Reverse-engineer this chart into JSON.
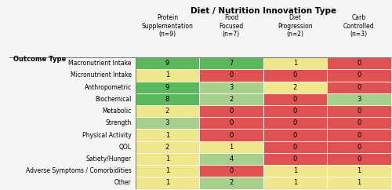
{
  "title": "Diet / Nutrition Innovation Type",
  "col_headers": [
    "Protein\nSupplementation\n(n=9)",
    "Food\nFocused\n(n=7)",
    "Diet\nProgression\n(n=2)",
    "Carb\nControlled\n(n=3)"
  ],
  "row_headers": [
    "Macronutrient Intake",
    "Micronutrient Intake",
    "Anthropometric",
    "Biochemical",
    "Metabolic",
    "Strength",
    "Physical Activity",
    "QOL",
    "Satiety/Hunger",
    "Adverse Symptoms / Comorbidities",
    "Other"
  ],
  "values": [
    [
      9,
      7,
      1,
      0
    ],
    [
      1,
      0,
      0,
      0
    ],
    [
      9,
      3,
      2,
      0
    ],
    [
      8,
      2,
      0,
      3
    ],
    [
      2,
      0,
      0,
      0
    ],
    [
      3,
      0,
      0,
      0
    ],
    [
      1,
      0,
      0,
      0
    ],
    [
      2,
      1,
      0,
      0
    ],
    [
      1,
      4,
      0,
      0
    ],
    [
      1,
      0,
      1,
      1
    ],
    [
      1,
      2,
      1,
      1
    ]
  ],
  "colors": [
    [
      "#5cb85c",
      "#5cb85c",
      "#f0e68c",
      "#e05252"
    ],
    [
      "#f0e68c",
      "#e05252",
      "#e05252",
      "#e05252"
    ],
    [
      "#5cb85c",
      "#a8d08d",
      "#f0e68c",
      "#e05252"
    ],
    [
      "#5cb85c",
      "#a8d08d",
      "#e05252",
      "#a8d08d"
    ],
    [
      "#f0e68c",
      "#e05252",
      "#e05252",
      "#e05252"
    ],
    [
      "#a8d08d",
      "#e05252",
      "#e05252",
      "#e05252"
    ],
    [
      "#f0e68c",
      "#e05252",
      "#e05252",
      "#e05252"
    ],
    [
      "#f0e68c",
      "#f0e68c",
      "#e05252",
      "#e05252"
    ],
    [
      "#f0e68c",
      "#a8d08d",
      "#e05252",
      "#e05252"
    ],
    [
      "#f0e68c",
      "#e05252",
      "#f0e68c",
      "#f0e68c"
    ],
    [
      "#f0e68c",
      "#a8d08d",
      "#f0e68c",
      "#f0e68c"
    ]
  ],
  "outcome_label": "Outcome Type",
  "background": "#f5f5f5"
}
